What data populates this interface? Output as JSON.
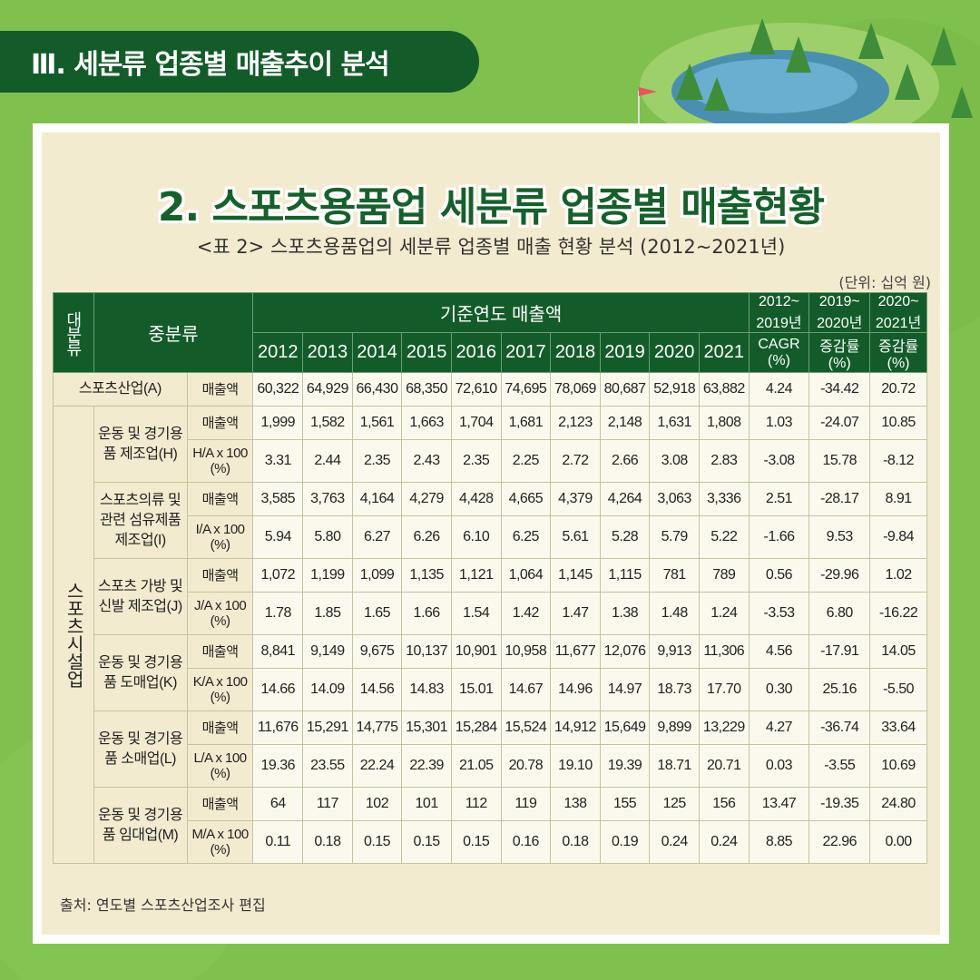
{
  "section_label": "Ⅲ. 세분류 업종별 매출추이 분석",
  "title": "2. 스포츠용품업 세분류 업종별 매출현황",
  "subtitle": "<표 2> 스포츠용품업의 세분류 업종별 매출 현황 분석 (2012~2021년)",
  "unit": "(단위: 십억 원)",
  "source": "출처: 연도별 스포츠산업조사 편집",
  "header": {
    "col_major": "대분류",
    "col_mid": "중분류",
    "sales_group": "기준연도 매출액",
    "years": [
      "2012",
      "2013",
      "2014",
      "2015",
      "2016",
      "2017",
      "2018",
      "2019",
      "2020",
      "2021"
    ],
    "cagr_period": "2012~ 2019년",
    "cagr_label": "CAGR (%)",
    "chg1_period": "2019~ 2020년",
    "chg1_label": "증감률 (%)",
    "chg2_period": "2020~ 2021년",
    "chg2_label": "증감률 (%)"
  },
  "total_row": {
    "label": "스포츠산업(A)",
    "metric": "매출액",
    "values": [
      "60,322",
      "64,929",
      "66,430",
      "68,350",
      "72,610",
      "74,695",
      "78,069",
      "80,687",
      "52,918",
      "63,882",
      "4.24",
      "-34.42",
      "20.72"
    ]
  },
  "category": "스포츠시설업",
  "groups": [
    {
      "name": "운동 및 경기용품 제조업(H)",
      "rows": [
        {
          "metric": "매출액",
          "values": [
            "1,999",
            "1,582",
            "1,561",
            "1,663",
            "1,704",
            "1,681",
            "2,123",
            "2,148",
            "1,631",
            "1,808",
            "1.03",
            "-24.07",
            "10.85"
          ]
        },
        {
          "metric": "H/A x 100 (%)",
          "values": [
            "3.31",
            "2.44",
            "2.35",
            "2.43",
            "2.35",
            "2.25",
            "2.72",
            "2.66",
            "3.08",
            "2.83",
            "-3.08",
            "15.78",
            "-8.12"
          ]
        }
      ]
    },
    {
      "name": "스포츠의류 및 관련 섬유제품 제조업(I)",
      "rows": [
        {
          "metric": "매출액",
          "values": [
            "3,585",
            "3,763",
            "4,164",
            "4,279",
            "4,428",
            "4,665",
            "4,379",
            "4,264",
            "3,063",
            "3,336",
            "2.51",
            "-28.17",
            "8.91"
          ]
        },
        {
          "metric": "I/A x 100 (%)",
          "values": [
            "5.94",
            "5.80",
            "6.27",
            "6.26",
            "6.10",
            "6.25",
            "5.61",
            "5.28",
            "5.79",
            "5.22",
            "-1.66",
            "9.53",
            "-9.84"
          ]
        }
      ]
    },
    {
      "name": "스포츠 가방 및 신발 제조업(J)",
      "rows": [
        {
          "metric": "매출액",
          "values": [
            "1,072",
            "1,199",
            "1,099",
            "1,135",
            "1,121",
            "1,064",
            "1,145",
            "1,115",
            "781",
            "789",
            "0.56",
            "-29.96",
            "1.02"
          ]
        },
        {
          "metric": "J/A x 100 (%)",
          "values": [
            "1.78",
            "1.85",
            "1.65",
            "1.66",
            "1.54",
            "1.42",
            "1.47",
            "1.38",
            "1.48",
            "1.24",
            "-3.53",
            "6.80",
            "-16.22"
          ]
        }
      ]
    },
    {
      "name": "운동 및 경기용품 도매업(K)",
      "rows": [
        {
          "metric": "매출액",
          "values": [
            "8,841",
            "9,149",
            "9,675",
            "10,137",
            "10,901",
            "10,958",
            "11,677",
            "12,076",
            "9,913",
            "11,306",
            "4.56",
            "-17.91",
            "14.05"
          ]
        },
        {
          "metric": "K/A x 100 (%)",
          "values": [
            "14.66",
            "14.09",
            "14.56",
            "14.83",
            "15.01",
            "14.67",
            "14.96",
            "14.97",
            "18.73",
            "17.70",
            "0.30",
            "25.16",
            "-5.50"
          ]
        }
      ]
    },
    {
      "name": "운동 및 경기용품 소매업(L)",
      "rows": [
        {
          "metric": "매출액",
          "values": [
            "11,676",
            "15,291",
            "14,775",
            "15,301",
            "15,284",
            "15,524",
            "14,912",
            "15,649",
            "9,899",
            "13,229",
            "4.27",
            "-36.74",
            "33.64"
          ]
        },
        {
          "metric": "L/A x 100 (%)",
          "values": [
            "19.36",
            "23.55",
            "22.24",
            "22.39",
            "21.05",
            "20.78",
            "19.10",
            "19.39",
            "18.71",
            "20.71",
            "0.03",
            "-3.55",
            "10.69"
          ]
        }
      ]
    },
    {
      "name": "운동 및 경기용품 임대업(M)",
      "rows": [
        {
          "metric": "매출액",
          "values": [
            "64",
            "117",
            "102",
            "101",
            "112",
            "119",
            "138",
            "155",
            "125",
            "156",
            "13.47",
            "-19.35",
            "24.80"
          ]
        },
        {
          "metric": "M/A x 100 (%)",
          "values": [
            "0.11",
            "0.18",
            "0.15",
            "0.15",
            "0.15",
            "0.16",
            "0.18",
            "0.19",
            "0.24",
            "0.24",
            "8.85",
            "22.96",
            "0.00"
          ]
        }
      ]
    }
  ]
}
